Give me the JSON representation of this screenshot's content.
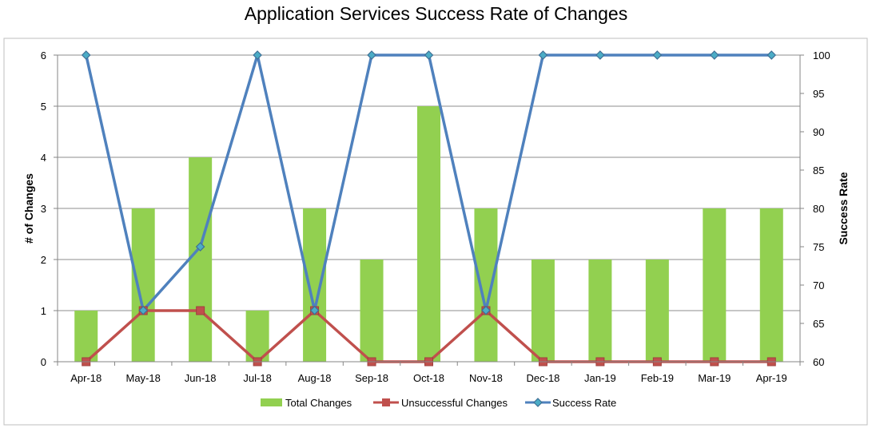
{
  "chart_data": {
    "type": "bar",
    "title": "Application Services Success Rate of Changes",
    "categories": [
      "Apr-18",
      "May-18",
      "Jun-18",
      "Jul-18",
      "Aug-18",
      "Sep-18",
      "Oct-18",
      "Nov-18",
      "Dec-18",
      "Jan-19",
      "Feb-19",
      "Mar-19",
      "Apr-19"
    ],
    "series": [
      {
        "name": "Total Changes",
        "type": "bar",
        "axis": "left",
        "color": "#92D050",
        "values": [
          1,
          3,
          4,
          1,
          3,
          2,
          5,
          3,
          2,
          2,
          2,
          3,
          3
        ]
      },
      {
        "name": "Unsuccessful Changes",
        "type": "line",
        "axis": "left",
        "color": "#C0504D",
        "marker": "square",
        "values": [
          0,
          1,
          1,
          0,
          1,
          0,
          0,
          1,
          0,
          0,
          0,
          0,
          0
        ]
      },
      {
        "name": "Success Rate",
        "type": "line",
        "axis": "right",
        "color": "#4F81BD",
        "marker": "diamond",
        "values": [
          100,
          66.7,
          75,
          100,
          66.7,
          100,
          100,
          66.7,
          100,
          100,
          100,
          100,
          100
        ]
      }
    ],
    "ylabel": "# of Changes",
    "ylim": [
      0,
      6
    ],
    "yticks": [
      "0",
      "1",
      "2",
      "3",
      "4",
      "5",
      "6"
    ],
    "y2label": "Success Rate",
    "y2lim": [
      60,
      100
    ],
    "y2ticks": [
      "60",
      "65",
      "70",
      "75",
      "80",
      "85",
      "90",
      "95",
      "100"
    ],
    "grid": true,
    "legend_position": "bottom"
  }
}
